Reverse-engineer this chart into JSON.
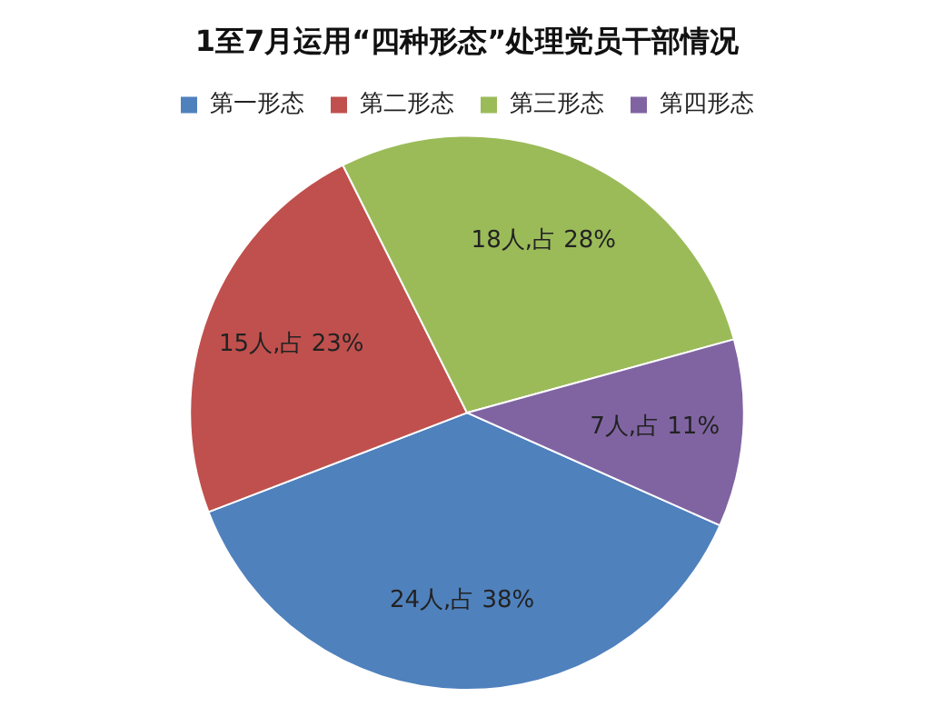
{
  "chart_data": {
    "type": "pie",
    "title": "1至7月运用“四种形态”处理党员干部情况",
    "categories": [
      "第一形态",
      "第二形态",
      "第三形态",
      "第四形态"
    ],
    "values": [
      24,
      15,
      18,
      7
    ],
    "colors": [
      "#4f81bd",
      "#c0504d",
      "#9bbb59",
      "#8064a2"
    ],
    "value_labels": [
      "24人,占 38%",
      "15人,占 23%",
      "18人,占 28%",
      "7人,占 11%"
    ],
    "legend": "top"
  }
}
